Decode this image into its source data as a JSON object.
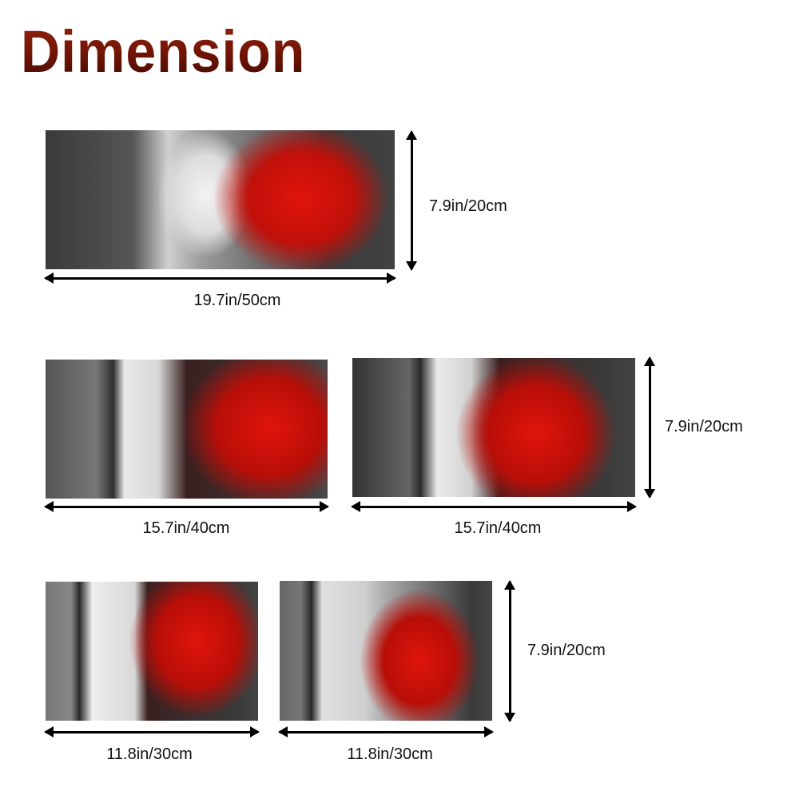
{
  "title": "Dimension",
  "panels": [
    {
      "width_label": "19.7in/50cm",
      "height_label": "7.9in/20cm"
    },
    {
      "width_label": "15.7in/40cm"
    },
    {
      "width_label": "15.7in/40cm",
      "height_label": "7.9in/20cm"
    },
    {
      "width_label": "11.8in/30cm"
    },
    {
      "width_label": "11.8in/30cm",
      "height_label": "7.9in/20cm"
    }
  ],
  "colors": {
    "title": "#7a1808",
    "tree": "#d8140c",
    "arrow": "#000000"
  }
}
